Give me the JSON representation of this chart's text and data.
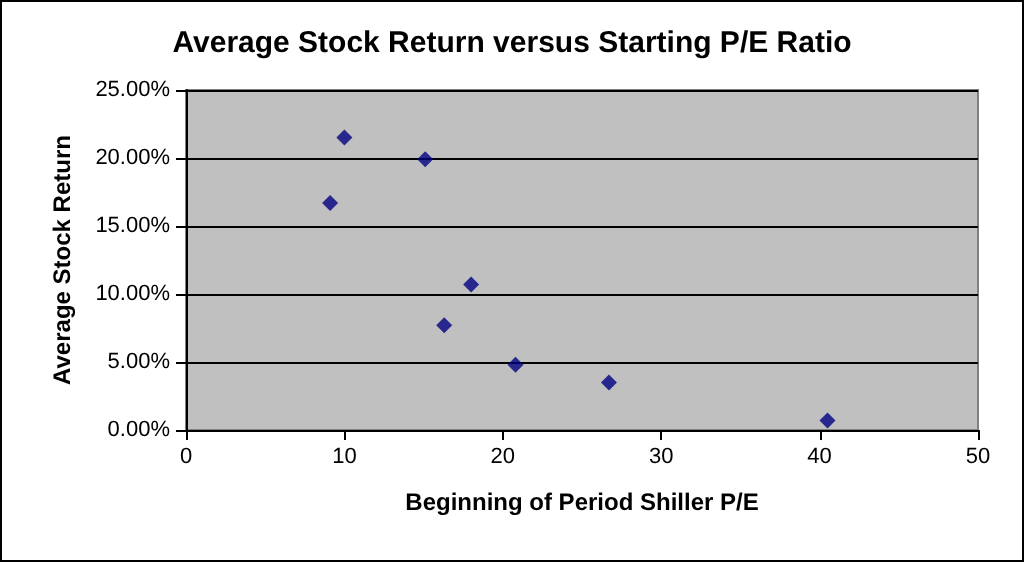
{
  "chart_data": {
    "type": "scatter",
    "title": "Average Stock Return versus Starting P/E Ratio",
    "xlabel": "Beginning of Period Shiller P/E",
    "ylabel": "Average Stock Return",
    "x": [
      9.1,
      10.0,
      15.1,
      16.3,
      18.0,
      20.8,
      26.7,
      40.5
    ],
    "values": [
      0.167,
      0.215,
      0.199,
      0.077,
      0.107,
      0.048,
      0.035,
      0.007
    ],
    "color": "#000080",
    "marker": "diamond",
    "grid": "y",
    "xlim": [
      0,
      50
    ],
    "xticks": [
      0,
      10,
      20,
      30,
      40,
      50
    ],
    "ylim": [
      0,
      0.25
    ],
    "yticks": [
      {
        "value": 0,
        "label": "0.00%"
      },
      {
        "value": 0.05,
        "label": "5.00%"
      },
      {
        "value": 0.1,
        "label": "10.00%"
      },
      {
        "value": 0.15,
        "label": "15.00%"
      },
      {
        "value": 0.2,
        "label": "20.00%"
      },
      {
        "value": 0.25,
        "label": "25.00%"
      }
    ]
  }
}
